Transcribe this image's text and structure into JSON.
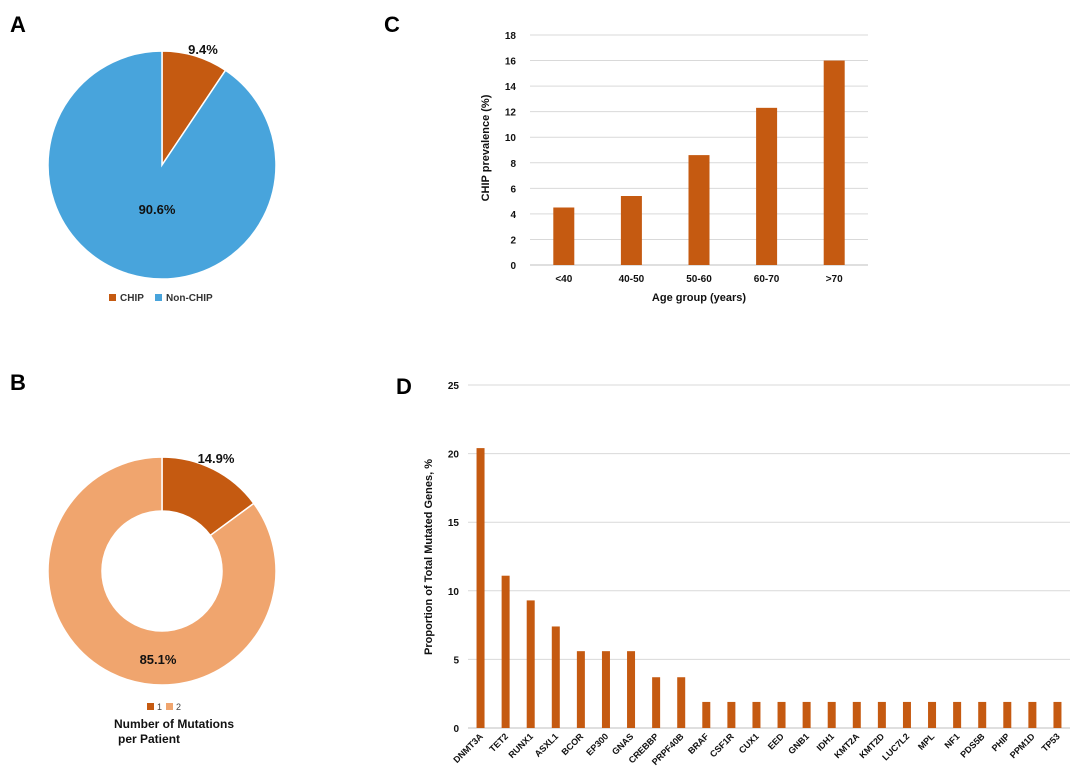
{
  "colors": {
    "chip": "#c55a11",
    "non_chip": "#48a4dc",
    "two_mut": "#f0a56e",
    "grid": "#d9d9d9",
    "text": "#111111"
  },
  "chart_data": [
    {
      "panel": "A",
      "type": "pie",
      "labels": [
        "CHIP",
        "Non-CHIP"
      ],
      "values": [
        9.4,
        90.6
      ],
      "data_labels": [
        "9.4%",
        "90.6%"
      ],
      "legend_position": "bottom"
    },
    {
      "panel": "B",
      "type": "pie",
      "subtype": "donut",
      "labels": [
        "1",
        "2"
      ],
      "values": [
        14.9,
        85.1
      ],
      "data_labels": [
        "14.9%",
        "85.1%"
      ],
      "legend_position": "bottom",
      "legend_title_lines": [
        "Number of Mutations",
        "per Patient"
      ]
    },
    {
      "panel": "C",
      "type": "bar",
      "categories": [
        "<40",
        "40-50",
        "50-60",
        "60-70",
        ">70"
      ],
      "values": [
        4.5,
        5.4,
        8.6,
        12.3,
        16.0
      ],
      "xlabel": "Age group (years)",
      "ylabel": "CHIP prevalence (%)",
      "ylim": [
        0,
        18
      ],
      "yticks": [
        "0",
        "2",
        "4",
        "6",
        "8",
        "10",
        "12",
        "14",
        "16",
        "18"
      ],
      "grid": true
    },
    {
      "panel": "D",
      "type": "bar",
      "categories": [
        "DNMT3A",
        "TET2",
        "RUNX1",
        "ASXL1",
        "BCOR",
        "EP300",
        "GNAS",
        "CREBBP",
        "PRPF40B",
        "BRAF",
        "CSF1R",
        "CUX1",
        "EED",
        "GNB1",
        "IDH1",
        "KMT2A",
        "KMT2D",
        "LUC7L2",
        "MPL",
        "NF1",
        "PDS5B",
        "PHIP",
        "PPM1D",
        "TP53"
      ],
      "values": [
        20.4,
        11.1,
        9.3,
        7.4,
        5.6,
        5.6,
        5.6,
        3.7,
        3.7,
        1.9,
        1.9,
        1.9,
        1.9,
        1.9,
        1.9,
        1.9,
        1.9,
        1.9,
        1.9,
        1.9,
        1.9,
        1.9,
        1.9,
        1.9
      ],
      "xlabel": "",
      "ylabel": "Proportion of Total Mutated Genes, %",
      "ylim": [
        0,
        25
      ],
      "yticks": [
        "0",
        "5",
        "10",
        "15",
        "20",
        "25"
      ],
      "grid": true
    }
  ]
}
